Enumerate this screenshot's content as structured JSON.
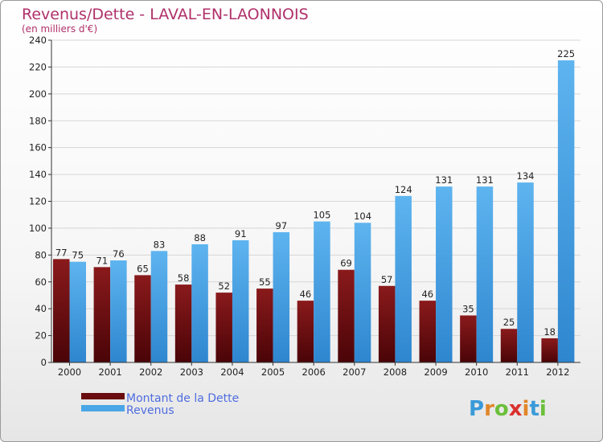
{
  "chart_data": {
    "type": "bar",
    "title": "Revenus/Dette - LAVAL-EN-LAONNOIS",
    "subtitle": "(en milliers d'€)",
    "categories": [
      "2000",
      "2001",
      "2002",
      "2003",
      "2004",
      "2005",
      "2006",
      "2007",
      "2008",
      "2009",
      "2010",
      "2011",
      "2012"
    ],
    "series": [
      {
        "name": "Montant de la Dette",
        "color": "#7a1014",
        "values": [
          77,
          71,
          65,
          58,
          52,
          55,
          46,
          69,
          57,
          46,
          35,
          25,
          18
        ]
      },
      {
        "name": "Revenus",
        "color": "#4aa6e6",
        "values": [
          75,
          76,
          83,
          88,
          91,
          97,
          105,
          104,
          124,
          131,
          131,
          134,
          225
        ]
      }
    ],
    "ylim": [
      0,
      240
    ],
    "yticks": [
      0,
      20,
      40,
      60,
      80,
      100,
      120,
      140,
      160,
      180,
      200,
      220,
      240
    ],
    "grid": true,
    "legend_position": "bottom-left"
  },
  "logo": {
    "text": "Proxiti",
    "colors": [
      "#3a9ad9",
      "#e0862a",
      "#6bbf3a",
      "#d9312e",
      "#e0862a",
      "#3a9ad9",
      "#6bbf3a"
    ]
  }
}
